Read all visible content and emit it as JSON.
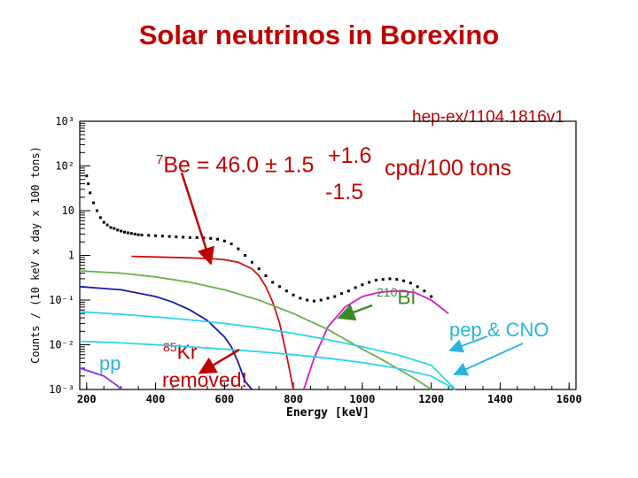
{
  "title": "Solar neutrinos in Borexino",
  "reference": "hep-ex/1104.1816v1",
  "annotations": {
    "be7_main": "7Be = 46.0 ± 1.5",
    "be7_sup": "7",
    "be7_body": "Be = 46.0 ± 1.5",
    "be7_plus": "+1.6",
    "be7_minus": "-1.5",
    "be7_unit": "cpd/100 tons",
    "bi210_sup": "210",
    "bi210_body": "Bi",
    "pep_cno": "pep & CNO",
    "pp": "pp",
    "kr85_sup": "85",
    "kr85_body": "Kr",
    "kr85_removed": "removed!"
  },
  "colors": {
    "title": "#c00000",
    "data": "#000000",
    "be7": "#cc1111",
    "kr85": "#1a1aa8",
    "bi210": "#d11cc8",
    "c11_like": "#6ab04c",
    "cno_pep": "#2ad4e8",
    "pp": "#8a2be2",
    "bi_label": "#3a8a2a",
    "cno_label": "#2ab4dc"
  },
  "chart_data": {
    "type": "line",
    "xlabel": "Energy [keV]",
    "ylabel": "Counts / (10 keV x day x 100 tons)",
    "xlim": [
      180,
      1620
    ],
    "ylim_log10": [
      -3,
      3
    ],
    "x_ticks": [
      "200",
      "400",
      "600",
      "800",
      "1000",
      "1200",
      "1400",
      "1600"
    ],
    "x_tick_values": [
      200,
      400,
      600,
      800,
      1000,
      1200,
      1400,
      1600
    ],
    "y_ticks": [
      "10³",
      "10²",
      "10",
      "1",
      "10⁻¹",
      "10⁻²",
      "10⁻³"
    ],
    "y_tick_log_values": [
      3,
      2,
      1,
      0,
      -1,
      -2,
      -3
    ],
    "log_y": true,
    "grid": false,
    "data_points": {
      "x": [
        200,
        205,
        210,
        220,
        230,
        240,
        250,
        260,
        270,
        280,
        290,
        300,
        310,
        320,
        330,
        340,
        350,
        360,
        380,
        400,
        420,
        440,
        460,
        480,
        500,
        520,
        540,
        560,
        580,
        600,
        620,
        640,
        660,
        680,
        700,
        720,
        740,
        760,
        780,
        800,
        820,
        840,
        860,
        880,
        900,
        920,
        940,
        960,
        980,
        1000,
        1020,
        1040,
        1060,
        1080,
        1100,
        1120,
        1140,
        1160,
        1180,
        1200
      ],
      "y": [
        60,
        40,
        25,
        15,
        10,
        7.0,
        5.5,
        4.8,
        4.2,
        4.0,
        3.7,
        3.5,
        3.3,
        3.2,
        3.1,
        3.0,
        2.9,
        2.85,
        2.8,
        2.75,
        2.7,
        2.65,
        2.6,
        2.55,
        2.5,
        2.5,
        2.45,
        2.4,
        2.3,
        2.1,
        1.8,
        1.4,
        1.0,
        0.7,
        0.5,
        0.35,
        0.25,
        0.2,
        0.16,
        0.13,
        0.11,
        0.1,
        0.095,
        0.1,
        0.11,
        0.12,
        0.14,
        0.16,
        0.19,
        0.22,
        0.25,
        0.28,
        0.29,
        0.3,
        0.29,
        0.27,
        0.24,
        0.2,
        0.16,
        0.12
      ]
    },
    "series": [
      {
        "color_key": "be7",
        "x": [
          330,
          400,
          500,
          560,
          600,
          640,
          680,
          700,
          720,
          740,
          760,
          780,
          800
        ],
        "y": [
          0.95,
          0.92,
          0.88,
          0.85,
          0.8,
          0.7,
          0.5,
          0.35,
          0.2,
          0.09,
          0.03,
          0.006,
          0.001
        ]
      },
      {
        "color_key": "kr85",
        "x": [
          180,
          300,
          400,
          450,
          500,
          550,
          600,
          620,
          640,
          660,
          680
        ],
        "y": [
          0.2,
          0.17,
          0.12,
          0.09,
          0.06,
          0.035,
          0.015,
          0.009,
          0.004,
          0.0015,
          0.001
        ]
      },
      {
        "color_key": "bi210",
        "x": [
          830,
          860,
          900,
          950,
          1000,
          1050,
          1100,
          1150,
          1200,
          1250
        ],
        "y": [
          0.001,
          0.005,
          0.025,
          0.07,
          0.12,
          0.15,
          0.16,
          0.15,
          0.1,
          0.05
        ]
      },
      {
        "color_key": "c11_like",
        "x": [
          180,
          300,
          400,
          500,
          600,
          700,
          800,
          900,
          1000,
          1050,
          1100,
          1150,
          1200
        ],
        "y": [
          0.45,
          0.4,
          0.33,
          0.25,
          0.17,
          0.1,
          0.05,
          0.022,
          0.008,
          0.005,
          0.003,
          0.0018,
          0.001
        ]
      },
      {
        "color_key": "cno_pep",
        "x": [
          180,
          300,
          400,
          500,
          600,
          700,
          800,
          900,
          1000,
          1100,
          1200,
          1270
        ],
        "y": [
          0.055,
          0.048,
          0.042,
          0.036,
          0.03,
          0.024,
          0.018,
          0.013,
          0.009,
          0.006,
          0.0035,
          0.001
        ]
      },
      {
        "color_key": "cno_pep",
        "x": [
          180,
          300,
          400,
          500,
          600,
          700,
          800,
          900,
          1000,
          1100,
          1200,
          1270
        ],
        "y": [
          0.012,
          0.011,
          0.01,
          0.009,
          0.008,
          0.007,
          0.006,
          0.005,
          0.004,
          0.003,
          0.002,
          0.001
        ]
      },
      {
        "color_key": "pp",
        "x": [
          180,
          250,
          290,
          300
        ],
        "y": [
          0.003,
          0.002,
          0.0012,
          0.001
        ]
      }
    ]
  }
}
